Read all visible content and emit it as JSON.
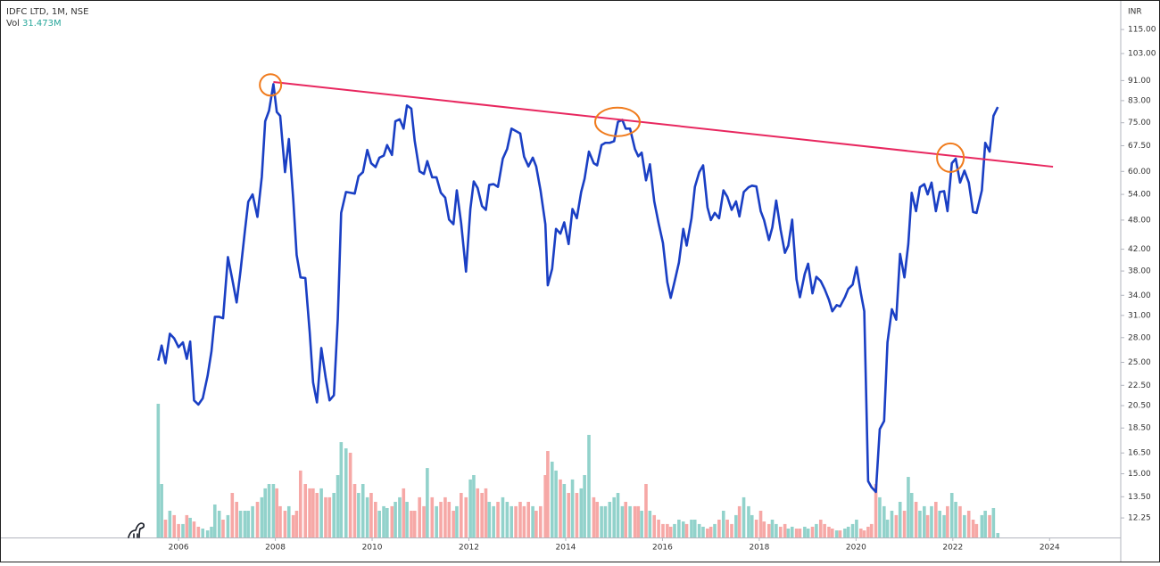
{
  "chart_data": {
    "type": "line",
    "title": "IDFC LTD, 1M, NSE",
    "volume_title": "Vol",
    "volume_value_label": "31.473M",
    "y_axis_unit": "INR",
    "log_scale": true,
    "color": "#1a3fc4",
    "up_color": "#92d2cb",
    "down_color": "#f6a8a6",
    "trendline": {
      "x": [
        2007.96,
        2024.07
      ],
      "values": [
        90.4,
        61.3
      ],
      "color": "#e8275f"
    },
    "highlights": {
      "x": [
        2007.9,
        2015.07,
        2021.95
      ],
      "values": [
        89.2,
        75.3,
        63.9
      ],
      "color": "#f07b1d"
    },
    "xlim": [
      2002.31,
      2025.47
    ],
    "xticks": [
      2006,
      2008,
      2010,
      2012,
      2014,
      2016,
      2018,
      2020,
      2022,
      2024
    ],
    "ylim": [
      11.2,
      129
    ],
    "yticks": [
      {
        "value": 12.25,
        "label": "12.25"
      },
      {
        "value": 13.5,
        "label": "13.50"
      },
      {
        "value": 15,
        "label": "15.00"
      },
      {
        "value": 16.5,
        "label": "16.50"
      },
      {
        "value": 18.5,
        "label": "18.50"
      },
      {
        "value": 20.5,
        "label": "20.50"
      },
      {
        "value": 22.5,
        "label": "22.50"
      },
      {
        "value": 25,
        "label": "25.00"
      },
      {
        "value": 28,
        "label": "28.00"
      },
      {
        "value": 31,
        "label": "31.00"
      },
      {
        "value": 34,
        "label": "34.00"
      },
      {
        "value": 38,
        "label": "38.00"
      },
      {
        "value": 42,
        "label": "42.00"
      },
      {
        "value": 48,
        "label": "48.00"
      },
      {
        "value": 54,
        "label": "54.00"
      },
      {
        "value": 60,
        "label": "60.00"
      },
      {
        "value": 67.5,
        "label": "67.50"
      },
      {
        "value": 75,
        "label": "75.00"
      },
      {
        "value": 83,
        "label": "83.00"
      },
      {
        "value": 91,
        "label": "91.00"
      },
      {
        "value": 103,
        "label": "103.00"
      },
      {
        "value": 115,
        "label": "115.00"
      }
    ],
    "volume_ylim": [
      0,
      945
    ],
    "x": [
      2005.58,
      2005.65,
      2005.73,
      2005.82,
      2005.91,
      2006.0,
      2006.09,
      2006.17,
      2006.24,
      2006.32,
      2006.41,
      2006.5,
      2006.6,
      2006.68,
      2006.75,
      2006.84,
      2006.92,
      2007.02,
      2007.11,
      2007.2,
      2007.28,
      2007.37,
      2007.44,
      2007.53,
      2007.63,
      2007.72,
      2007.79,
      2007.87,
      2007.96,
      2008.03,
      2008.1,
      2008.2,
      2008.28,
      2008.37,
      2008.44,
      2008.52,
      2008.62,
      2008.71,
      2008.78,
      2008.86,
      2008.95,
      2009.04,
      2009.12,
      2009.21,
      2009.29,
      2009.36,
      2009.46,
      2009.55,
      2009.64,
      2009.72,
      2009.81,
      2009.9,
      2009.98,
      2010.07,
      2010.15,
      2010.24,
      2010.31,
      2010.41,
      2010.48,
      2010.57,
      2010.65,
      2010.72,
      2010.81,
      2010.88,
      2010.98,
      2011.07,
      2011.14,
      2011.24,
      2011.33,
      2011.42,
      2011.51,
      2011.59,
      2011.68,
      2011.75,
      2011.84,
      2011.94,
      2012.03,
      2012.1,
      2012.18,
      2012.27,
      2012.35,
      2012.42,
      2012.51,
      2012.6,
      2012.7,
      2012.79,
      2012.88,
      2012.97,
      2013.06,
      2013.14,
      2013.23,
      2013.32,
      2013.39,
      2013.48,
      2013.58,
      2013.63,
      2013.72,
      2013.8,
      2013.89,
      2013.97,
      2014.06,
      2014.14,
      2014.23,
      2014.32,
      2014.39,
      2014.48,
      2014.58,
      2014.65,
      2014.74,
      2014.82,
      2014.91,
      2015.0,
      2015.08,
      2015.17,
      2015.24,
      2015.33,
      2015.43,
      2015.5,
      2015.57,
      2015.66,
      2015.74,
      2015.83,
      2015.92,
      2016.01,
      2016.1,
      2016.17,
      2016.25,
      2016.34,
      2016.43,
      2016.5,
      2016.6,
      2016.67,
      2016.76,
      2016.84,
      2016.93,
      2017.0,
      2017.08,
      2017.17,
      2017.26,
      2017.34,
      2017.43,
      2017.52,
      2017.59,
      2017.68,
      2017.78,
      2017.85,
      2017.94,
      2018.03,
      2018.1,
      2018.2,
      2018.27,
      2018.35,
      2018.44,
      2018.53,
      2018.6,
      2018.68,
      2018.77,
      2018.84,
      2018.94,
      2019.01,
      2019.1,
      2019.18,
      2019.27,
      2019.35,
      2019.44,
      2019.51,
      2019.6,
      2019.67,
      2019.77,
      2019.84,
      2019.93,
      2020.01,
      2020.1,
      2020.17,
      2020.25,
      2020.32,
      2020.41,
      2020.49,
      2020.58,
      2020.65,
      2020.74,
      2020.83,
      2020.91,
      2021.0,
      2021.08,
      2021.15,
      2021.24,
      2021.32,
      2021.41,
      2021.48,
      2021.56,
      2021.65,
      2021.73,
      2021.82,
      2021.89,
      2021.98,
      2022.06,
      2022.15,
      2022.24,
      2022.33,
      2022.42,
      2022.49,
      2022.6,
      2022.67,
      2022.76,
      2022.84,
      2022.93
    ],
    "values": [
      25.2,
      27,
      24.9,
      28.5,
      27.9,
      26.8,
      27.4,
      25.4,
      27.5,
      21.0,
      20.6,
      21.2,
      23.5,
      26.3,
      30.8,
      30.8,
      30.6,
      40.5,
      36.6,
      32.9,
      38,
      45.6,
      52.2,
      54,
      48.7,
      58.5,
      75.5,
      79.3,
      89.5,
      78.8,
      77.4,
      59.8,
      69.6,
      52.8,
      40.9,
      36.9,
      36.8,
      28.7,
      22.8,
      20.8,
      26.7,
      23.3,
      21.0,
      21.5,
      30.5,
      49.6,
      54.6,
      54.4,
      54.2,
      58.7,
      59.8,
      66.2,
      62.3,
      61.2,
      63.9,
      64.5,
      67.7,
      64.7,
      75.5,
      76.2,
      73,
      81.2,
      80,
      69,
      60,
      59.3,
      62.9,
      58.4,
      58.4,
      54.4,
      53.2,
      48.1,
      47.1,
      55,
      47.3,
      37.9,
      50.5,
      57.3,
      55.6,
      51.2,
      50.3,
      56.4,
      56.6,
      55.9,
      63.6,
      66.5,
      73,
      72.2,
      71.4,
      64.2,
      61.4,
      63.9,
      61.4,
      55,
      47.1,
      35.6,
      38.4,
      46.1,
      45.1,
      47.5,
      43,
      50.5,
      48.4,
      54.6,
      58,
      65.7,
      62.3,
      61.7,
      67.7,
      68.4,
      68.4,
      68.9,
      75.3,
      76,
      73,
      73,
      66.5,
      64.3,
      65.4,
      57.6,
      62,
      52.3,
      47.3,
      43.2,
      36.1,
      33.6,
      36.2,
      39.5,
      46.1,
      42.7,
      48.4,
      55.9,
      59.8,
      61.7,
      50.9,
      48,
      49.6,
      48.4,
      55,
      53.4,
      50.3,
      52.3,
      48.8,
      54.6,
      55.8,
      56.2,
      56,
      50,
      48,
      43.8,
      46.4,
      52.5,
      46,
      41.3,
      42.7,
      48.1,
      36.6,
      33.7,
      37.5,
      39.3,
      34.3,
      37,
      36.3,
      35,
      33.3,
      31.6,
      32.5,
      32.3,
      33.7,
      35,
      35.7,
      38.7,
      34.3,
      31.6,
      14.5,
      14.1,
      13.8,
      18.4,
      19.1,
      27.4,
      31.9,
      30.4,
      41.1,
      36.9,
      43,
      54.4,
      50,
      55.8,
      56.6,
      54,
      57,
      50,
      54.6,
      54.8,
      50,
      62.3,
      63.6,
      57,
      60.2,
      57,
      49.8,
      49.6,
      55,
      68.4,
      65.7,
      77.4,
      80.6
    ],
    "volume": [
      945,
      378,
      126,
      189,
      158,
      95,
      95,
      158,
      139,
      113,
      76,
      63,
      50,
      76,
      233,
      189,
      126,
      158,
      315,
      252,
      189,
      189,
      189,
      221,
      252,
      284,
      347,
      378,
      378,
      347,
      221,
      189,
      221,
      158,
      189,
      473,
      378,
      347,
      347,
      315,
      347,
      284,
      284,
      315,
      441,
      674,
      630,
      599,
      378,
      315,
      378,
      284,
      315,
      252,
      189,
      221,
      208,
      221,
      252,
      284,
      347,
      252,
      189,
      189,
      284,
      221,
      491,
      284,
      221,
      252,
      284,
      252,
      189,
      221,
      315,
      284,
      410,
      441,
      347,
      315,
      347,
      252,
      221,
      252,
      284,
      252,
      221,
      221,
      252,
      221,
      252,
      221,
      189,
      221,
      441,
      611,
      536,
      473,
      410,
      378,
      315,
      410,
      315,
      347,
      441,
      725,
      284,
      252,
      221,
      221,
      252,
      284,
      315,
      221,
      252,
      221,
      221,
      221,
      189,
      378,
      189,
      158,
      126,
      95,
      95,
      76,
      95,
      126,
      113,
      95,
      126,
      126,
      95,
      76,
      63,
      76,
      95,
      126,
      189,
      126,
      95,
      158,
      221,
      284,
      221,
      158,
      126,
      189,
      113,
      95,
      126,
      95,
      76,
      95,
      63,
      76,
      63,
      63,
      76,
      63,
      76,
      95,
      126,
      95,
      76,
      63,
      50,
      50,
      63,
      76,
      95,
      126,
      63,
      50,
      76,
      95,
      378,
      284,
      221,
      126,
      189,
      158,
      252,
      189,
      428,
      315,
      252,
      189,
      221,
      158,
      221,
      252,
      189,
      158,
      221,
      315,
      252,
      221,
      158,
      189,
      126,
      95,
      158,
      189,
      158,
      208,
      31.473
    ]
  }
}
